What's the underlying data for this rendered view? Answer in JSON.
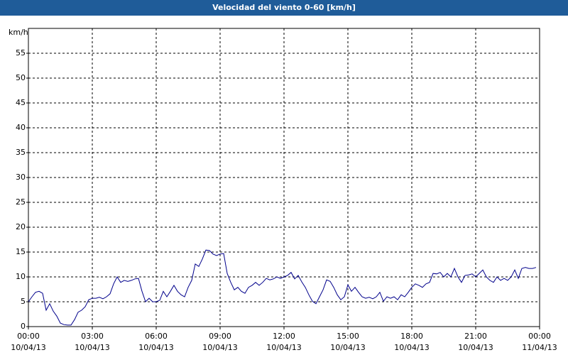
{
  "chart_data": {
    "type": "line",
    "title": "Velocidad del viento 0-60 [km/h]",
    "y_label": "km/h",
    "x": [
      0,
      10,
      20,
      30,
      40,
      50,
      60,
      70,
      80,
      90,
      100,
      110,
      120,
      130,
      140,
      150,
      160,
      170,
      180,
      190,
      200,
      210,
      220,
      230,
      240,
      250,
      260,
      270,
      280,
      290,
      300,
      310,
      320,
      330,
      340,
      350,
      360,
      370,
      380,
      390,
      400,
      410,
      420,
      430,
      440,
      450,
      460,
      470,
      480,
      490,
      500,
      510,
      520,
      530,
      540,
      550,
      560,
      570,
      580,
      590,
      600,
      610,
      620,
      630,
      640,
      650,
      660,
      670,
      680,
      690,
      700,
      710,
      720,
      730,
      740,
      750,
      760,
      770,
      780,
      790,
      800,
      810,
      820,
      830,
      840,
      850,
      860,
      870,
      880,
      890,
      900,
      910,
      920,
      930,
      940,
      950,
      960,
      970,
      980,
      990,
      1000,
      1010,
      1020,
      1030,
      1040,
      1050,
      1060,
      1070,
      1080,
      1090,
      1100,
      1110,
      1120,
      1130,
      1140,
      1150,
      1160,
      1170,
      1180,
      1190,
      1200,
      1210,
      1220,
      1230,
      1240,
      1250,
      1260,
      1270,
      1280,
      1290,
      1300,
      1310,
      1320,
      1330,
      1340,
      1350,
      1360,
      1370,
      1380,
      1390,
      1400,
      1410,
      1420,
      1430
    ],
    "series": [
      {
        "color": "#00008b",
        "values": [
          5.0,
          6,
          6.9,
          7.1,
          6.7,
          3.3,
          4.6,
          3.1,
          2.1,
          0.7,
          0.4,
          0.3,
          0.3,
          1.4,
          2.9,
          3.3,
          4,
          5.4,
          5.7,
          5.7,
          5.9,
          5.6,
          6,
          6.6,
          8.6,
          10,
          8.9,
          9.3,
          9.1,
          9.3,
          9.6,
          9.7,
          7.1,
          5,
          5.7,
          5,
          5,
          5.3,
          7.1,
          6,
          7.1,
          8.3,
          7.1,
          6.4,
          6,
          7.9,
          9.3,
          12.6,
          12.1,
          13.6,
          15.4,
          15.3,
          14.6,
          14.3,
          14.6,
          14.7,
          10.7,
          8.9,
          7.4,
          7.9,
          7.1,
          6.7,
          7.9,
          8.3,
          8.9,
          8.3,
          8.9,
          9.7,
          9.4,
          9.6,
          10,
          9.7,
          10,
          10.3,
          10.9,
          9.6,
          10.3,
          9,
          7.9,
          6.4,
          5.1,
          4.6,
          6,
          7.4,
          9.4,
          9.1,
          7.9,
          6.4,
          5.4,
          6,
          8.4,
          7.1,
          7.9,
          6.9,
          6,
          5.7,
          5.9,
          5.6,
          6,
          6.9,
          5.1,
          6,
          5.7,
          6,
          5.4,
          6.4,
          6,
          6.9,
          7.9,
          8.6,
          8.3,
          7.9,
          8.6,
          8.9,
          10.7,
          10.6,
          10.9,
          10,
          10.7,
          10,
          11.7,
          10,
          8.9,
          10.3,
          10.4,
          10.6,
          10,
          10.7,
          11.4,
          10,
          9.3,
          8.9,
          10,
          9.3,
          9.7,
          9.3,
          10,
          11.4,
          9.7,
          11.7,
          11.9,
          11.7,
          11.7,
          11.9
        ]
      }
    ],
    "xlim": [
      0,
      1440
    ],
    "xticks": [
      {
        "value": 0,
        "label": "00:00",
        "date": "10/04/13"
      },
      {
        "value": 180,
        "label": "03:00",
        "date": "10/04/13"
      },
      {
        "value": 360,
        "label": "06:00",
        "date": "10/04/13"
      },
      {
        "value": 540,
        "label": "09:00",
        "date": "10/04/13"
      },
      {
        "value": 720,
        "label": "12:00",
        "date": "10/04/13"
      },
      {
        "value": 900,
        "label": "15:00",
        "date": "10/04/13"
      },
      {
        "value": 1080,
        "label": "18:00",
        "date": "10/04/13"
      },
      {
        "value": 1260,
        "label": "21:00",
        "date": "10/04/13"
      },
      {
        "value": 1440,
        "label": "00:00",
        "date": "11/04/13"
      }
    ],
    "ylim": [
      0,
      60
    ],
    "yticks": [
      0,
      5,
      10,
      15,
      20,
      25,
      30,
      35,
      40,
      45,
      50,
      55
    ],
    "grid": true
  }
}
